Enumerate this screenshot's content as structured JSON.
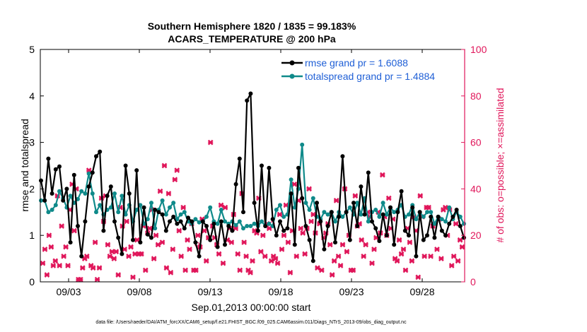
{
  "chart_data": {
    "type": "line",
    "title": "Southern Hemisphere 1820 / 1835 = 99.183%",
    "subtitle": "ACARS_TEMPERATURE @ 200 hPa",
    "xlabel": "Sep.01,2013 00:00:00 start",
    "ylabel": "rmse and totalspread",
    "y2label": "# of obs: o=possible; ×=assimilated",
    "footnote": "data file: /Users/raeder/DAI/ATM_forcXX/CAM6_setup/f.e21.FHIST_BGC.f09_025.CAM6assim.011/Diags_NTrS_2013-09/obs_diag_output.nc",
    "xlim": [
      0.5,
      30.5
    ],
    "ylim": [
      0,
      5
    ],
    "y2lim": [
      0,
      100
    ],
    "xticks": [
      2.5,
      7.5,
      12.5,
      17.5,
      22.5,
      27.5
    ],
    "xtick_labels": [
      "09/03",
      "09/08",
      "09/13",
      "09/18",
      "09/23",
      "09/28"
    ],
    "yticks": [
      0,
      1,
      2,
      3,
      4,
      5
    ],
    "y2ticks": [
      0,
      20,
      40,
      60,
      80,
      100
    ],
    "colors": {
      "rmse": "#000000",
      "spread": "#0f8a8a",
      "obs": "#e0165a",
      "legend_text": "#1f5fd6",
      "right_axis": "#e0165a"
    },
    "series": [
      {
        "name": "rmse grand pr = 1.6088",
        "color": "#000000",
        "values": [
          2.18,
          1.75,
          2.65,
          1.9,
          2.42,
          2.48,
          1.75,
          2.0,
          0.85,
          2.3,
          1.2,
          0.55,
          1.3,
          2.05,
          2.35,
          2.7,
          2.8,
          1.1,
          1.85,
          2.05,
          1.3,
          0.95,
          0.6,
          2.5,
          1.9,
          0.9,
          2.4,
          0.85,
          1.6,
          1.02,
          0.95,
          1.55,
          1.5,
          1.45,
          1.1,
          1.3,
          1.4,
          1.25,
          1.3,
          1.15,
          1.38,
          1.3,
          0.85,
          0.55,
          1.3,
          1.2,
          0.9,
          1.25,
          0.75,
          1.3,
          0.8,
          1.2,
          1.1,
          2.1,
          2.65,
          1.5,
          3.9,
          4.05,
          1.7,
          1.1,
          2.5,
          1.2,
          2.45,
          1.35,
          1.0,
          1.3,
          1.1,
          1.15,
          1.9,
          0.8,
          2.45,
          1.8,
          1.2,
          0.9,
          0.45,
          1.7,
          1.3,
          0.7,
          1.2,
          1.5,
          0.85,
          1.4,
          2.7,
          1.5,
          0.9,
          1.7,
          1.2,
          2.05,
          1.45,
          2.35,
          1.3,
          1.15,
          0.88,
          1.45,
          1.0,
          1.6,
          0.8,
          1.5,
          1.95,
          1.1,
          1.0,
          1.6,
          0.55,
          1.5,
          0.9,
          1.0,
          1.4,
          0.95,
          1.4,
          1.1,
          1.0,
          1.25,
          1.4,
          1.55,
          1.2,
          0.95
        ]
      },
      {
        "name": "totalspread grand pr = 1.4884",
        "color": "#0f8a8a",
        "values": [
          1.75,
          1.75,
          1.5,
          1.55,
          1.65,
          1.95,
          1.8,
          1.6,
          1.85,
          1.7,
          1.78,
          1.95,
          1.9,
          2.33,
          1.9,
          1.5,
          1.65,
          1.45,
          1.55,
          1.6,
          1.9,
          1.5,
          1.85,
          1.45,
          1.65,
          1.3,
          1.55,
          1.65,
          1.25,
          1.35,
          1.7,
          1.15,
          1.55,
          1.75,
          1.45,
          1.6,
          1.7,
          1.35,
          1.45,
          1.5,
          1.3,
          1.25,
          1.35,
          1.28,
          1.3,
          1.4,
          1.6,
          1.3,
          1.25,
          1.55,
          1.3,
          1.25,
          1.3,
          1.22,
          1.3,
          1.15,
          1.2,
          1.2,
          1.25,
          1.2,
          1.3,
          1.2,
          1.25,
          1.2,
          1.55,
          1.65,
          1.4,
          1.45,
          2.2,
          1.6,
          2.0,
          2.95,
          1.7,
          1.55,
          1.8,
          1.4,
          1.35,
          1.5,
          1.45,
          1.5,
          1.3,
          1.5,
          1.4,
          1.5,
          1.6,
          1.45,
          1.7,
          1.45,
          1.8,
          1.3,
          1.5,
          1.55,
          1.4,
          1.7,
          1.45,
          1.6,
          1.5,
          1.55,
          1.65,
          1.4,
          1.45,
          1.65,
          1.35,
          1.5,
          1.4,
          1.5,
          1.5,
          1.25,
          1.4,
          1.35,
          1.3,
          1.6,
          1.35,
          1.5,
          1.4,
          1.25
        ]
      }
    ],
    "obs_assimilated": [
      8,
      14,
      3,
      20,
      15,
      7,
      9,
      37,
      7,
      24,
      11,
      15,
      7,
      31,
      42,
      22,
      40,
      1,
      1,
      6,
      10,
      11,
      48,
      7,
      6,
      17,
      1,
      6,
      36,
      26,
      37,
      16,
      11,
      13,
      10,
      13,
      3,
      32,
      24,
      14,
      26,
      11,
      15,
      2,
      12,
      18,
      12,
      12,
      24,
      5,
      21,
      23,
      31,
      10,
      20,
      16,
      39,
      17,
      50,
      6,
      38,
      4,
      14,
      44,
      48,
      22,
      11,
      32,
      5,
      18,
      14,
      25,
      5,
      5,
      20,
      15,
      27,
      22,
      9,
      19,
      60,
      24,
      19,
      16,
      12,
      33,
      8,
      32,
      18,
      23,
      17,
      29,
      23,
      12,
      5,
      38,
      17,
      11,
      5,
      4,
      9,
      22,
      21,
      36,
      13,
      20,
      11,
      25,
      23,
      9,
      11,
      10,
      8,
      29,
      14,
      20,
      33,
      17,
      4,
      22,
      42,
      11,
      35,
      23,
      21,
      12,
      23,
      40,
      26,
      29,
      21,
      6,
      25,
      5,
      19,
      21,
      25,
      16,
      3,
      9,
      35,
      11,
      7,
      16,
      40,
      13,
      20,
      5,
      5,
      37,
      24,
      25,
      18,
      11,
      16,
      30,
      28,
      8,
      14,
      19,
      30,
      21,
      46,
      28,
      20,
      36,
      23,
      27,
      10,
      9,
      18,
      12,
      14,
      5,
      23,
      17,
      9,
      28,
      22,
      2,
      37,
      28,
      11,
      32,
      32,
      11,
      24,
      25,
      14,
      27,
      10,
      31,
      32,
      20,
      31,
      7,
      11,
      25,
      9,
      18,
      15
    ],
    "obs_possible_outliers": [
      16,
      25
    ]
  }
}
